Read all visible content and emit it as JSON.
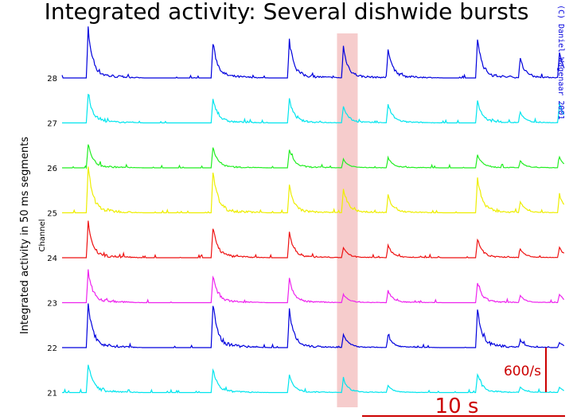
{
  "chart_data": {
    "type": "line",
    "title": "Integrated activity: Several dishwide bursts",
    "ylabel": "Integrated activity in 50 ms segments",
    "channel_label": "Channel",
    "copyright": "(C) Daniel Wagenaar 2001",
    "x_unit": "s",
    "x_range": [
      0,
      27
    ],
    "channel_offset_per_s": 600,
    "burst_times_s": [
      1.4,
      8.1,
      12.2,
      15.1,
      17.5,
      22.3,
      24.6,
      26.7
    ],
    "highlight_burst_index": 3,
    "highlight_color": "#f6cccc",
    "scale_bars": {
      "y_label": "600/s",
      "y_value": 600,
      "x_label": "10 s",
      "x_value": 10,
      "color": "#cc0000"
    },
    "series": [
      {
        "name": "28",
        "color": "#0000dd",
        "peaks": [
          620,
          450,
          470,
          385,
          365,
          490,
          235,
          320
        ]
      },
      {
        "name": "27",
        "color": "#00e5ee",
        "peaks": [
          375,
          320,
          300,
          215,
          235,
          280,
          130,
          235
        ]
      },
      {
        "name": "26",
        "color": "#22ee22",
        "peaks": [
          300,
          270,
          235,
          107,
          128,
          170,
          85,
          128
        ]
      },
      {
        "name": "25",
        "color": "#eeee00",
        "peaks": [
          590,
          535,
          340,
          300,
          215,
          450,
          130,
          235
        ]
      },
      {
        "name": "24",
        "color": "#ee1111",
        "peaks": [
          450,
          385,
          320,
          128,
          150,
          235,
          107,
          128
        ]
      },
      {
        "name": "23",
        "color": "#ee22ee",
        "peaks": [
          405,
          340,
          300,
          107,
          150,
          255,
          85,
          107
        ]
      },
      {
        "name": "22",
        "color": "#0000dd",
        "peaks": [
          555,
          555,
          470,
          170,
          150,
          490,
          85,
          64
        ]
      },
      {
        "name": "21",
        "color": "#00e5ee",
        "peaks": [
          365,
          300,
          215,
          170,
          85,
          235,
          64,
          64
        ]
      }
    ]
  }
}
